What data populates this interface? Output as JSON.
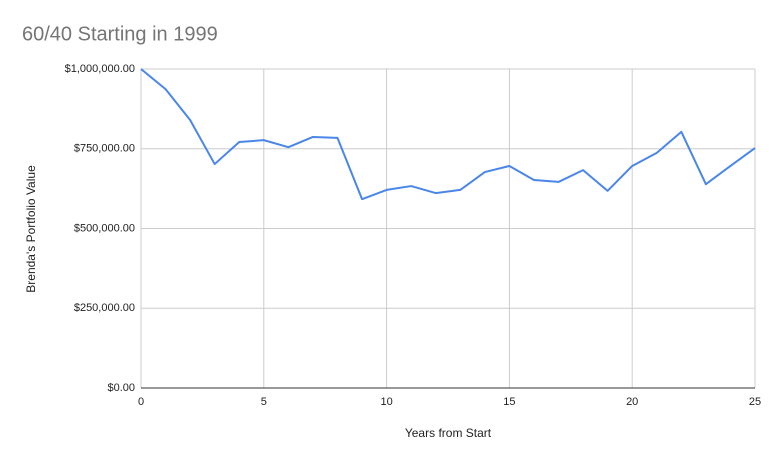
{
  "chart_data": {
    "type": "line",
    "title": "60/40 Starting in 1999",
    "xlabel": "Years from Start",
    "ylabel": "Brenda's Portfolio Value",
    "x": [
      0,
      1,
      2,
      3,
      4,
      5,
      6,
      7,
      8,
      9,
      10,
      11,
      12,
      13,
      14,
      15,
      16,
      17,
      18,
      19,
      20,
      21,
      22,
      23,
      24,
      25
    ],
    "values": [
      1000000,
      937000,
      840000,
      702000,
      771000,
      777000,
      755000,
      787000,
      784000,
      592000,
      621000,
      633000,
      611000,
      621000,
      677000,
      696000,
      652000,
      646000,
      683000,
      618000,
      696000,
      737000,
      803000,
      639000,
      696000,
      752000
    ],
    "color": "#4a86e8",
    "xlim": [
      0,
      25
    ],
    "xticks": [
      0,
      5,
      10,
      15,
      20,
      25
    ],
    "ylim": [
      0,
      1000000
    ],
    "yticks": [
      {
        "value": 0,
        "label": "$0.00"
      },
      {
        "value": 250000,
        "label": "$250,000.00"
      },
      {
        "value": 500000,
        "label": "$500,000.00"
      },
      {
        "value": 750000,
        "label": "$750,000.00"
      },
      {
        "value": 1000000,
        "label": "$1,000,000.00"
      }
    ],
    "grid": true
  }
}
